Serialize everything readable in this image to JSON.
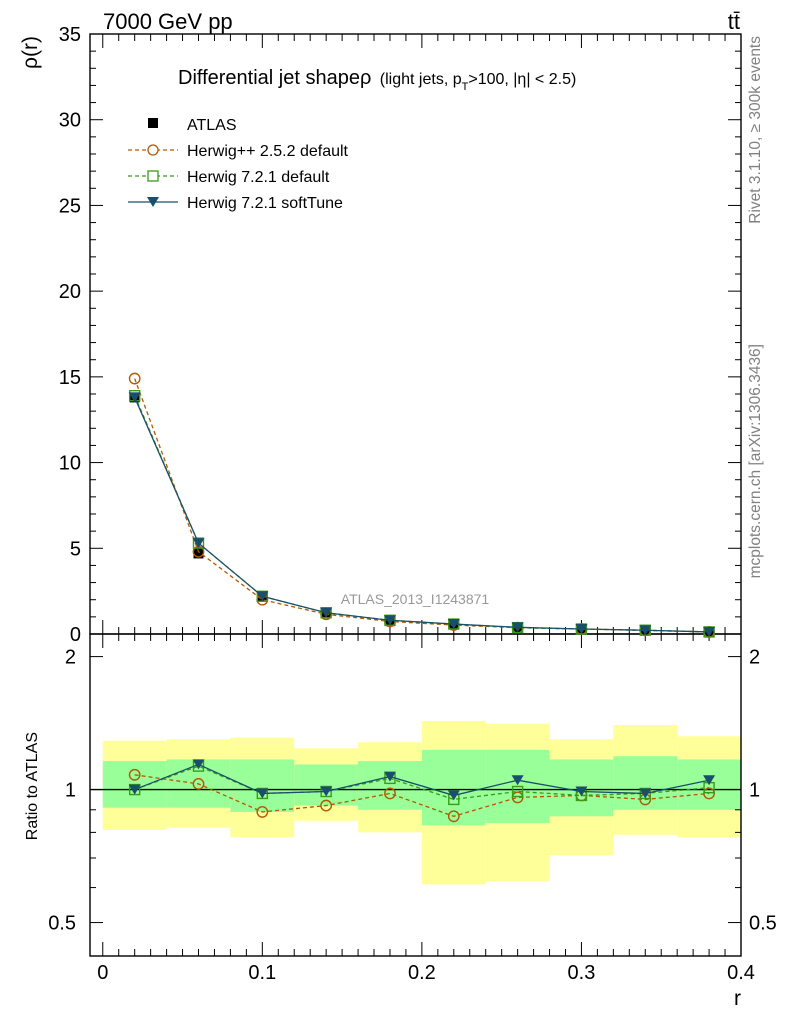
{
  "header": {
    "left": "7000 GeV pp",
    "right": "tt̄"
  },
  "side_labels": {
    "rivet": "Rivet 3.1.10, ≥ 300k events",
    "mcplots": "mcplots.cern.ch [arXiv:1306.3436]"
  },
  "watermark": "ATLAS_2013_I1243871",
  "main_title": {
    "main": "Differential jet shapeρ",
    "detail": "(light jets, p_T>100, |η| < 2.5)"
  },
  "chart_data": [
    {
      "type": "line",
      "ylabel": "ρ(r)",
      "xlim": [
        -0.008,
        0.4
      ],
      "ylim": [
        0,
        35
      ],
      "ytick_values": [
        0,
        5,
        10,
        15,
        20,
        25,
        30,
        35
      ],
      "ytick_labels": [
        "0",
        "5",
        "10",
        "15",
        "20",
        "25",
        "30",
        "35"
      ],
      "x": [
        0.02,
        0.06,
        0.1,
        0.14,
        0.18,
        0.22,
        0.26,
        0.3,
        0.34,
        0.38
      ],
      "series": [
        {
          "name": "ATLAS",
          "color": "#000000",
          "marker": "square-filled",
          "line": "none",
          "values": [
            13.8,
            4.7,
            2.2,
            1.25,
            0.75,
            0.6,
            0.38,
            0.3,
            0.22,
            0.12
          ]
        },
        {
          "name": "Herwig++ 2.5.2 default",
          "color": "#b35900",
          "marker": "circle-open",
          "line": "dashed",
          "values": [
            14.9,
            4.8,
            2.0,
            1.15,
            0.73,
            0.52,
            0.37,
            0.29,
            0.21,
            0.12
          ]
        },
        {
          "name": "Herwig 7.2.1 default",
          "color": "#3a9a1a",
          "marker": "square-open",
          "line": "dashed",
          "values": [
            13.9,
            5.3,
            2.2,
            1.24,
            0.8,
            0.58,
            0.37,
            0.29,
            0.22,
            0.12
          ]
        },
        {
          "name": "Herwig 7.2.1 softTune",
          "color": "#1a4f6b",
          "marker": "triangle-down-filled",
          "line": "solid",
          "values": [
            13.8,
            5.3,
            2.2,
            1.24,
            0.8,
            0.58,
            0.39,
            0.29,
            0.22,
            0.12
          ]
        }
      ]
    },
    {
      "type": "line",
      "xlabel": "r",
      "ylabel": "Ratio to ATLAS",
      "xlim": [
        -0.008,
        0.4
      ],
      "ylim": [
        0.42,
        2.25
      ],
      "yscale": "log",
      "xtick_values": [
        0,
        0.1,
        0.2,
        0.3,
        0.4
      ],
      "xtick_labels": [
        "0",
        "0.1",
        "0.2",
        "0.3",
        "0.4"
      ],
      "ytick_values": [
        0.5,
        1,
        2
      ],
      "ytick_labels": [
        "0.5",
        "1",
        "2"
      ],
      "reference_line": 1,
      "bins": [
        [
          0.0,
          0.04
        ],
        [
          0.04,
          0.08
        ],
        [
          0.08,
          0.12
        ],
        [
          0.12,
          0.16
        ],
        [
          0.16,
          0.2
        ],
        [
          0.2,
          0.24
        ],
        [
          0.24,
          0.28
        ],
        [
          0.28,
          0.32
        ],
        [
          0.32,
          0.36
        ],
        [
          0.36,
          0.4
        ]
      ],
      "band_outer": [
        [
          0.81,
          1.29
        ],
        [
          0.82,
          1.3
        ],
        [
          0.78,
          1.31
        ],
        [
          0.85,
          1.24
        ],
        [
          0.8,
          1.28
        ],
        [
          0.61,
          1.43
        ],
        [
          0.62,
          1.41
        ],
        [
          0.71,
          1.3
        ],
        [
          0.79,
          1.4
        ],
        [
          0.78,
          1.32
        ]
      ],
      "band_inner": [
        [
          0.91,
          1.16
        ],
        [
          0.91,
          1.17
        ],
        [
          0.89,
          1.17
        ],
        [
          0.92,
          1.14
        ],
        [
          0.9,
          1.16
        ],
        [
          0.83,
          1.23
        ],
        [
          0.84,
          1.23
        ],
        [
          0.87,
          1.17
        ],
        [
          0.9,
          1.19
        ],
        [
          0.9,
          1.17
        ]
      ],
      "x": [
        0.02,
        0.06,
        0.1,
        0.14,
        0.18,
        0.22,
        0.26,
        0.3,
        0.34,
        0.38
      ],
      "series": [
        {
          "name": "Herwig++ 2.5.2 default",
          "color": "#b35900",
          "marker": "circle-open",
          "line": "dashed",
          "values": [
            1.08,
            1.03,
            0.89,
            0.92,
            0.98,
            0.87,
            0.96,
            0.97,
            0.95,
            0.98
          ]
        },
        {
          "name": "Herwig 7.2.1 default",
          "color": "#3a9a1a",
          "marker": "square-open",
          "line": "dashed",
          "values": [
            1.0,
            1.13,
            0.98,
            0.99,
            1.06,
            0.95,
            0.99,
            0.97,
            0.98,
            1.01
          ]
        },
        {
          "name": "Herwig 7.2.1 softTune",
          "color": "#1a4f6b",
          "marker": "triangle-down-filled",
          "line": "solid",
          "values": [
            1.0,
            1.14,
            0.98,
            0.99,
            1.07,
            0.97,
            1.05,
            0.99,
            0.98,
            1.05
          ]
        }
      ]
    }
  ]
}
